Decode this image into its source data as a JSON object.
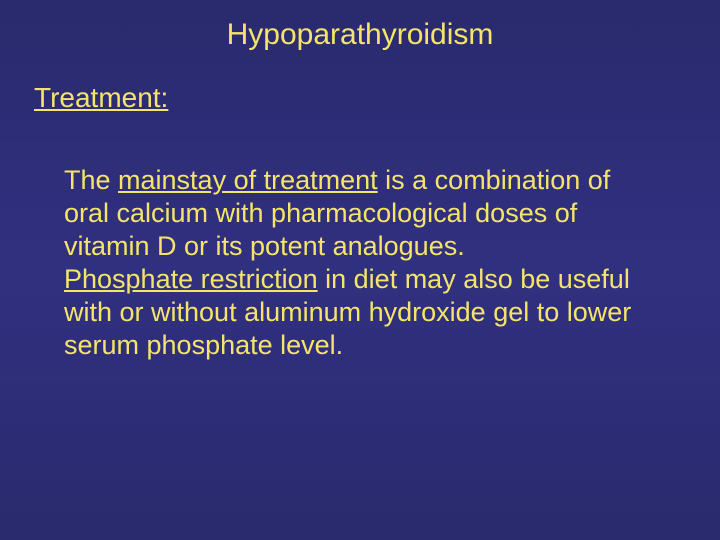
{
  "slide": {
    "background_gradient": [
      "#2a2a6e",
      "#303080",
      "#2a2a6e"
    ],
    "title": "Hypoparathyroidism",
    "subtitle": "Treatment:",
    "title_color": "#f5e46a",
    "subtitle_color": "#f5e46a",
    "body_color": "#f5e46a",
    "title_fontsize": 30,
    "subtitle_fontsize": 28,
    "body_fontsize": 27,
    "paragraphs": [
      {
        "segments": [
          {
            "text": "The ",
            "underline": false
          },
          {
            "text": "mainstay of treatment",
            "underline": true
          },
          {
            "text": " is a combination of oral calcium with pharmacological doses of vitamin D or its potent analogues.",
            "underline": false
          }
        ]
      },
      {
        "segments": [
          {
            "text": " ",
            "underline": false
          },
          {
            "text": "Phosphate restriction",
            "underline": true
          },
          {
            "text": " in diet may also be useful with or without aluminum hydroxide gel to lower serum phosphate level.",
            "underline": false
          }
        ]
      }
    ]
  }
}
